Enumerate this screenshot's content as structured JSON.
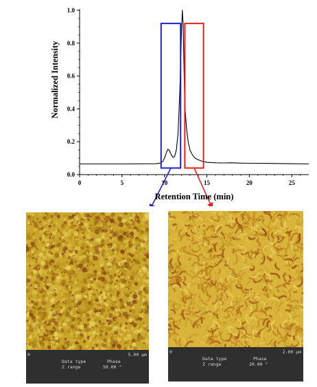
{
  "chart_data": {
    "type": "line",
    "xlabel": "Retention Time (min)",
    "ylabel": "Normalized Intensity",
    "xlim": [
      0,
      27
    ],
    "ylim": [
      0,
      1.0
    ],
    "x_ticks": [
      0,
      5,
      10,
      15,
      20,
      25
    ],
    "y_ticks": [
      0.0,
      0.2,
      0.4,
      0.6,
      0.8,
      1.0
    ],
    "x_tick_labels": [
      "0",
      "5",
      "10",
      "15",
      "20",
      "25"
    ],
    "y_tick_labels": [
      "0.0",
      "0.2",
      "0.4",
      "0.6",
      "0.8",
      "1.0"
    ],
    "grid": false,
    "series": [
      {
        "color": "#000000",
        "x": [
          0,
          5,
          9.0,
          9.5,
          9.8,
          10.0,
          10.2,
          10.4,
          10.6,
          10.8,
          11.0,
          11.2,
          11.4,
          11.6,
          11.8,
          12.0,
          12.1,
          12.2,
          12.3,
          12.4,
          12.6,
          12.8,
          13.0,
          13.3,
          13.6,
          14.0,
          14.5,
          15.0,
          16.0,
          17.0,
          18.0,
          19.0,
          20.0,
          22.0,
          25.0,
          27.0
        ],
        "y": [
          0.065,
          0.065,
          0.066,
          0.07,
          0.08,
          0.1,
          0.13,
          0.155,
          0.145,
          0.12,
          0.105,
          0.11,
          0.15,
          0.25,
          0.5,
          0.85,
          1.0,
          0.92,
          0.65,
          0.42,
          0.28,
          0.2,
          0.15,
          0.12,
          0.1,
          0.09,
          0.08,
          0.075,
          0.072,
          0.071,
          0.072,
          0.07,
          0.069,
          0.068,
          0.066,
          0.065
        ]
      }
    ],
    "highlight_boxes": [
      {
        "color": "#1f1fcc",
        "x_range": [
          9.6,
          11.9
        ],
        "y_range": [
          0.04,
          0.92
        ]
      },
      {
        "color": "#e02020",
        "x_range": [
          12.4,
          14.6
        ],
        "y_range": [
          0.04,
          0.92
        ]
      }
    ]
  },
  "afm_images": [
    {
      "scan_size": "5.00 µm",
      "origin": "0",
      "data_type_label": "Data type",
      "data_type_value": "Phase",
      "z_range_label": "Z range",
      "z_range_value": "50.00 °",
      "palette": [
        "#b8951a",
        "#c9a52a",
        "#d8b83a",
        "#e6cf5a",
        "#a47018",
        "#8c4a14"
      ]
    },
    {
      "scan_size": "2.00 µm",
      "origin": "0",
      "data_type_label": "Data type",
      "data_type_value": "Phase",
      "z_range_label": "Z range",
      "z_range_value": "20.00 °",
      "palette": [
        "#c9a02a",
        "#d9b43a",
        "#ead05a",
        "#b67a1a",
        "#9a4a14",
        "#c28c22"
      ]
    }
  ]
}
